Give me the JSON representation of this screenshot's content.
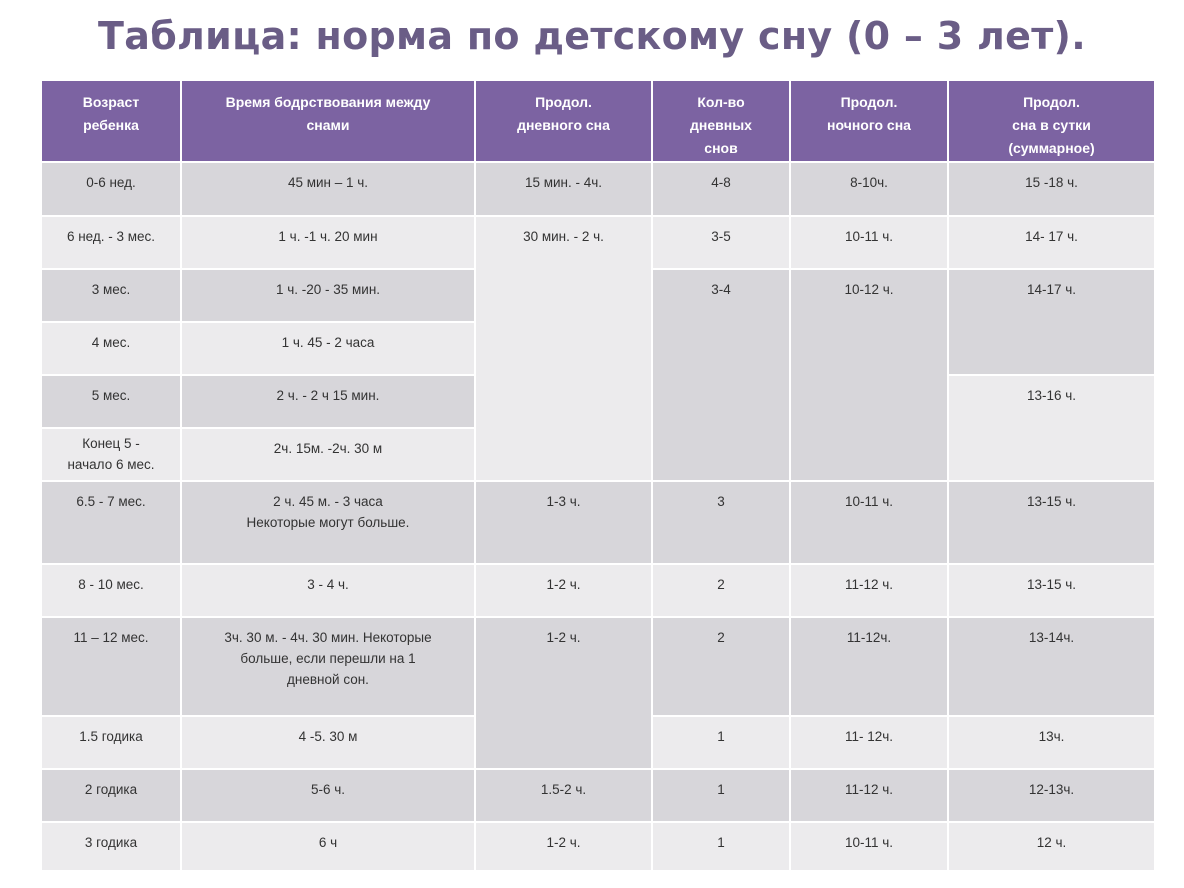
{
  "title": "Таблица: норма по детскому сну (0 – 3 лет).",
  "headers": {
    "age": "Возраст\nребенка",
    "wake": "Время  бодрствования  между\nснами",
    "day_nap": "Продол.\nдневного сна",
    "nap_count": "Кол-во\nдневных\nснов",
    "night": "Продол.\nночного сна",
    "total": "Продол.\nсна в сутки\n(суммарное)"
  },
  "rows": [
    {
      "age": "0-6 нед.",
      "wake": "45 мин – 1 ч.",
      "day_nap": "15 мин. -  4ч.",
      "nap_count": "4-8",
      "night": "8-10ч.",
      "total": "15 -18 ч."
    },
    {
      "age": "6 нед. - 3 мес.",
      "wake": "1 ч. -1 ч. 20 мин",
      "nap_count": "3-5",
      "night": "10-11 ч.",
      "total": "14- 17 ч."
    },
    {
      "age": "3 мес.",
      "wake": "1 ч. -20 - 35 мин."
    },
    {
      "age": "4 мес.",
      "wake": "1 ч. 45 - 2 часа"
    },
    {
      "age": "5 мес.",
      "wake": "2 ч. - 2 ч 15 мин."
    },
    {
      "age": "Конец 5 -\nначало 6 мес.",
      "wake": "2ч. 15м. -2ч. 30 м"
    },
    {
      "age": "6.5 - 7 мес.",
      "wake": "2 ч. 45 м. - 3 часа\nНекоторые могут  больше.",
      "day_nap": "1-3  ч.",
      "nap_count": "3",
      "night": "10-11 ч.",
      "total": "13-15 ч."
    },
    {
      "age": "8 - 10 мес.",
      "wake": "3 - 4 ч.",
      "day_nap": "1-2 ч.",
      "nap_count": "2",
      "night": "11-12 ч.",
      "total": "13-15 ч."
    },
    {
      "age": "11 – 12 мес.",
      "wake": "3ч. 30 м. - 4ч. 30 мин.  Некоторые\nбольше, если перешли на 1\nдневной сон.",
      "nap_count": "2",
      "night": "11-12ч.",
      "total": "13-14ч."
    },
    {
      "age": "1.5 годика",
      "wake": "4 -5. 30 м",
      "nap_count": "1",
      "night": "11- 12ч.",
      "total": "13ч."
    },
    {
      "age": "2 годика",
      "wake": "5-6  ч.",
      "day_nap": "1.5-2 ч.",
      "nap_count": "1",
      "night": "11-12 ч.",
      "total": "12-13ч."
    },
    {
      "age": "3 годика",
      "wake": "6 ч",
      "day_nap": "1-2 ч.",
      "nap_count": "1",
      "night": "10-11 ч.",
      "total": "12 ч."
    }
  ],
  "merged": {
    "day_nap_6w_6m": "30 мин. - 2 ч.",
    "nap_count_3m_6m": "3-4",
    "night_3m_6m": "10-12 ч.",
    "total_3m_4m": "14-17 ч.",
    "total_5m_6m": "13-16 ч.",
    "day_nap_11m_1_5y": "1-2 ч."
  },
  "colors": {
    "title": "#6a5d86",
    "header_bg": "#7c63a2",
    "cell_dark": "#d7d6da",
    "cell_light": "#ecebed"
  }
}
